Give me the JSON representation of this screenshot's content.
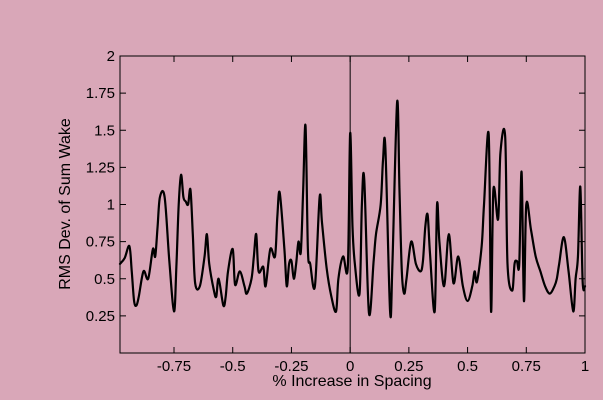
{
  "chart_data": {
    "type": "line",
    "title": "",
    "xlabel": "% Increase in Spacing",
    "ylabel": "RMS Dev. of Sum Wake",
    "xlim": [
      -0.98,
      1.0
    ],
    "ylim": [
      0.0,
      2.0
    ],
    "grid": false,
    "frame": true,
    "colors": {
      "background": "#d9a7b8",
      "plot_area": "#d9a7b8",
      "line": "#000000"
    },
    "x_ticks": [
      {
        "value": -0.75,
        "label": "-0.75"
      },
      {
        "value": -0.5,
        "label": "-0.5"
      },
      {
        "value": -0.25,
        "label": "-0.25"
      },
      {
        "value": 0,
        "label": "0"
      },
      {
        "value": 0.25,
        "label": "0.25"
      },
      {
        "value": 0.5,
        "label": "0.5"
      },
      {
        "value": 0.75,
        "label": "0.75"
      },
      {
        "value": 1,
        "label": "1"
      }
    ],
    "y_ticks": [
      {
        "value": 0.25,
        "label": "0.25"
      },
      {
        "value": 0.5,
        "label": "0.5"
      },
      {
        "value": 0.75,
        "label": "0.75"
      },
      {
        "value": 1,
        "label": "1"
      },
      {
        "value": 1.25,
        "label": "1.25"
      },
      {
        "value": 1.5,
        "label": "1.5"
      },
      {
        "value": 1.75,
        "label": "1.75"
      },
      {
        "value": 2,
        "label": "2"
      }
    ],
    "vertical_reference_line_x": 0,
    "series": [
      {
        "x": [
          -0.98,
          -0.96,
          -0.94,
          -0.93,
          -0.92,
          -0.91,
          -0.9,
          -0.88,
          -0.86,
          -0.84,
          -0.83,
          -0.82,
          -0.81,
          -0.79,
          -0.77,
          -0.75,
          -0.74,
          -0.73,
          -0.72,
          -0.71,
          -0.7,
          -0.69,
          -0.68,
          -0.67,
          -0.66,
          -0.64,
          -0.62,
          -0.61,
          -0.6,
          -0.58,
          -0.57,
          -0.56,
          -0.54,
          -0.53,
          -0.52,
          -0.5,
          -0.49,
          -0.47,
          -0.45,
          -0.44,
          -0.42,
          -0.41,
          -0.4,
          -0.39,
          -0.37,
          -0.36,
          -0.34,
          -0.32,
          -0.31,
          -0.3,
          -0.28,
          -0.27,
          -0.26,
          -0.25,
          -0.24,
          -0.23,
          -0.22,
          -0.21,
          -0.2,
          -0.19,
          -0.18,
          -0.17,
          -0.15,
          -0.13,
          -0.12,
          -0.1,
          -0.08,
          -0.06,
          -0.05,
          -0.03,
          -0.01,
          0.0,
          0.01,
          0.02,
          0.04,
          0.05,
          0.06,
          0.08,
          0.1,
          0.11,
          0.13,
          0.14,
          0.15,
          0.17,
          0.18,
          0.2,
          0.21,
          0.22,
          0.23,
          0.24,
          0.26,
          0.28,
          0.3,
          0.31,
          0.32,
          0.33,
          0.34,
          0.36,
          0.37,
          0.38,
          0.4,
          0.42,
          0.44,
          0.46,
          0.48,
          0.5,
          0.52,
          0.53,
          0.54,
          0.56,
          0.57,
          0.59,
          0.6,
          0.61,
          0.63,
          0.64,
          0.66,
          0.67,
          0.69,
          0.7,
          0.71,
          0.72,
          0.73,
          0.74,
          0.75,
          0.77,
          0.79,
          0.81,
          0.83,
          0.85,
          0.87,
          0.88,
          0.89,
          0.91,
          0.93,
          0.95,
          0.96,
          0.97,
          0.98,
          0.99,
          1.0
        ],
        "y": [
          0.6,
          0.64,
          0.72,
          0.55,
          0.35,
          0.32,
          0.38,
          0.55,
          0.5,
          0.7,
          0.65,
          0.85,
          1.05,
          1.05,
          0.62,
          0.28,
          0.58,
          1.0,
          1.2,
          1.05,
          1.02,
          1.0,
          1.1,
          0.8,
          0.47,
          0.45,
          0.65,
          0.8,
          0.6,
          0.42,
          0.38,
          0.5,
          0.32,
          0.38,
          0.55,
          0.7,
          0.46,
          0.55,
          0.45,
          0.4,
          0.5,
          0.65,
          0.8,
          0.55,
          0.58,
          0.45,
          0.7,
          0.65,
          0.92,
          1.08,
          0.7,
          0.45,
          0.6,
          0.62,
          0.5,
          0.6,
          0.75,
          0.68,
          1.1,
          1.53,
          0.7,
          0.6,
          0.45,
          1.05,
          0.88,
          0.57,
          0.38,
          0.28,
          0.5,
          0.65,
          0.58,
          1.48,
          0.85,
          0.6,
          0.4,
          1.0,
          1.17,
          0.27,
          0.62,
          0.8,
          1.0,
          1.3,
          1.38,
          0.28,
          0.6,
          1.69,
          1.1,
          0.55,
          0.4,
          0.5,
          0.75,
          0.6,
          0.55,
          0.62,
          0.85,
          0.93,
          0.67,
          0.28,
          1.0,
          0.75,
          0.45,
          0.8,
          0.47,
          0.65,
          0.45,
          0.35,
          0.45,
          0.55,
          0.48,
          0.72,
          1.0,
          1.47,
          0.28,
          1.1,
          0.9,
          1.35,
          1.46,
          0.6,
          0.42,
          0.6,
          0.62,
          0.6,
          1.22,
          0.35,
          1.0,
          0.83,
          0.65,
          0.55,
          0.45,
          0.4,
          0.45,
          0.5,
          0.6,
          0.78,
          0.55,
          0.28,
          0.5,
          0.65,
          1.12,
          0.48,
          0.45
        ]
      }
    ]
  }
}
